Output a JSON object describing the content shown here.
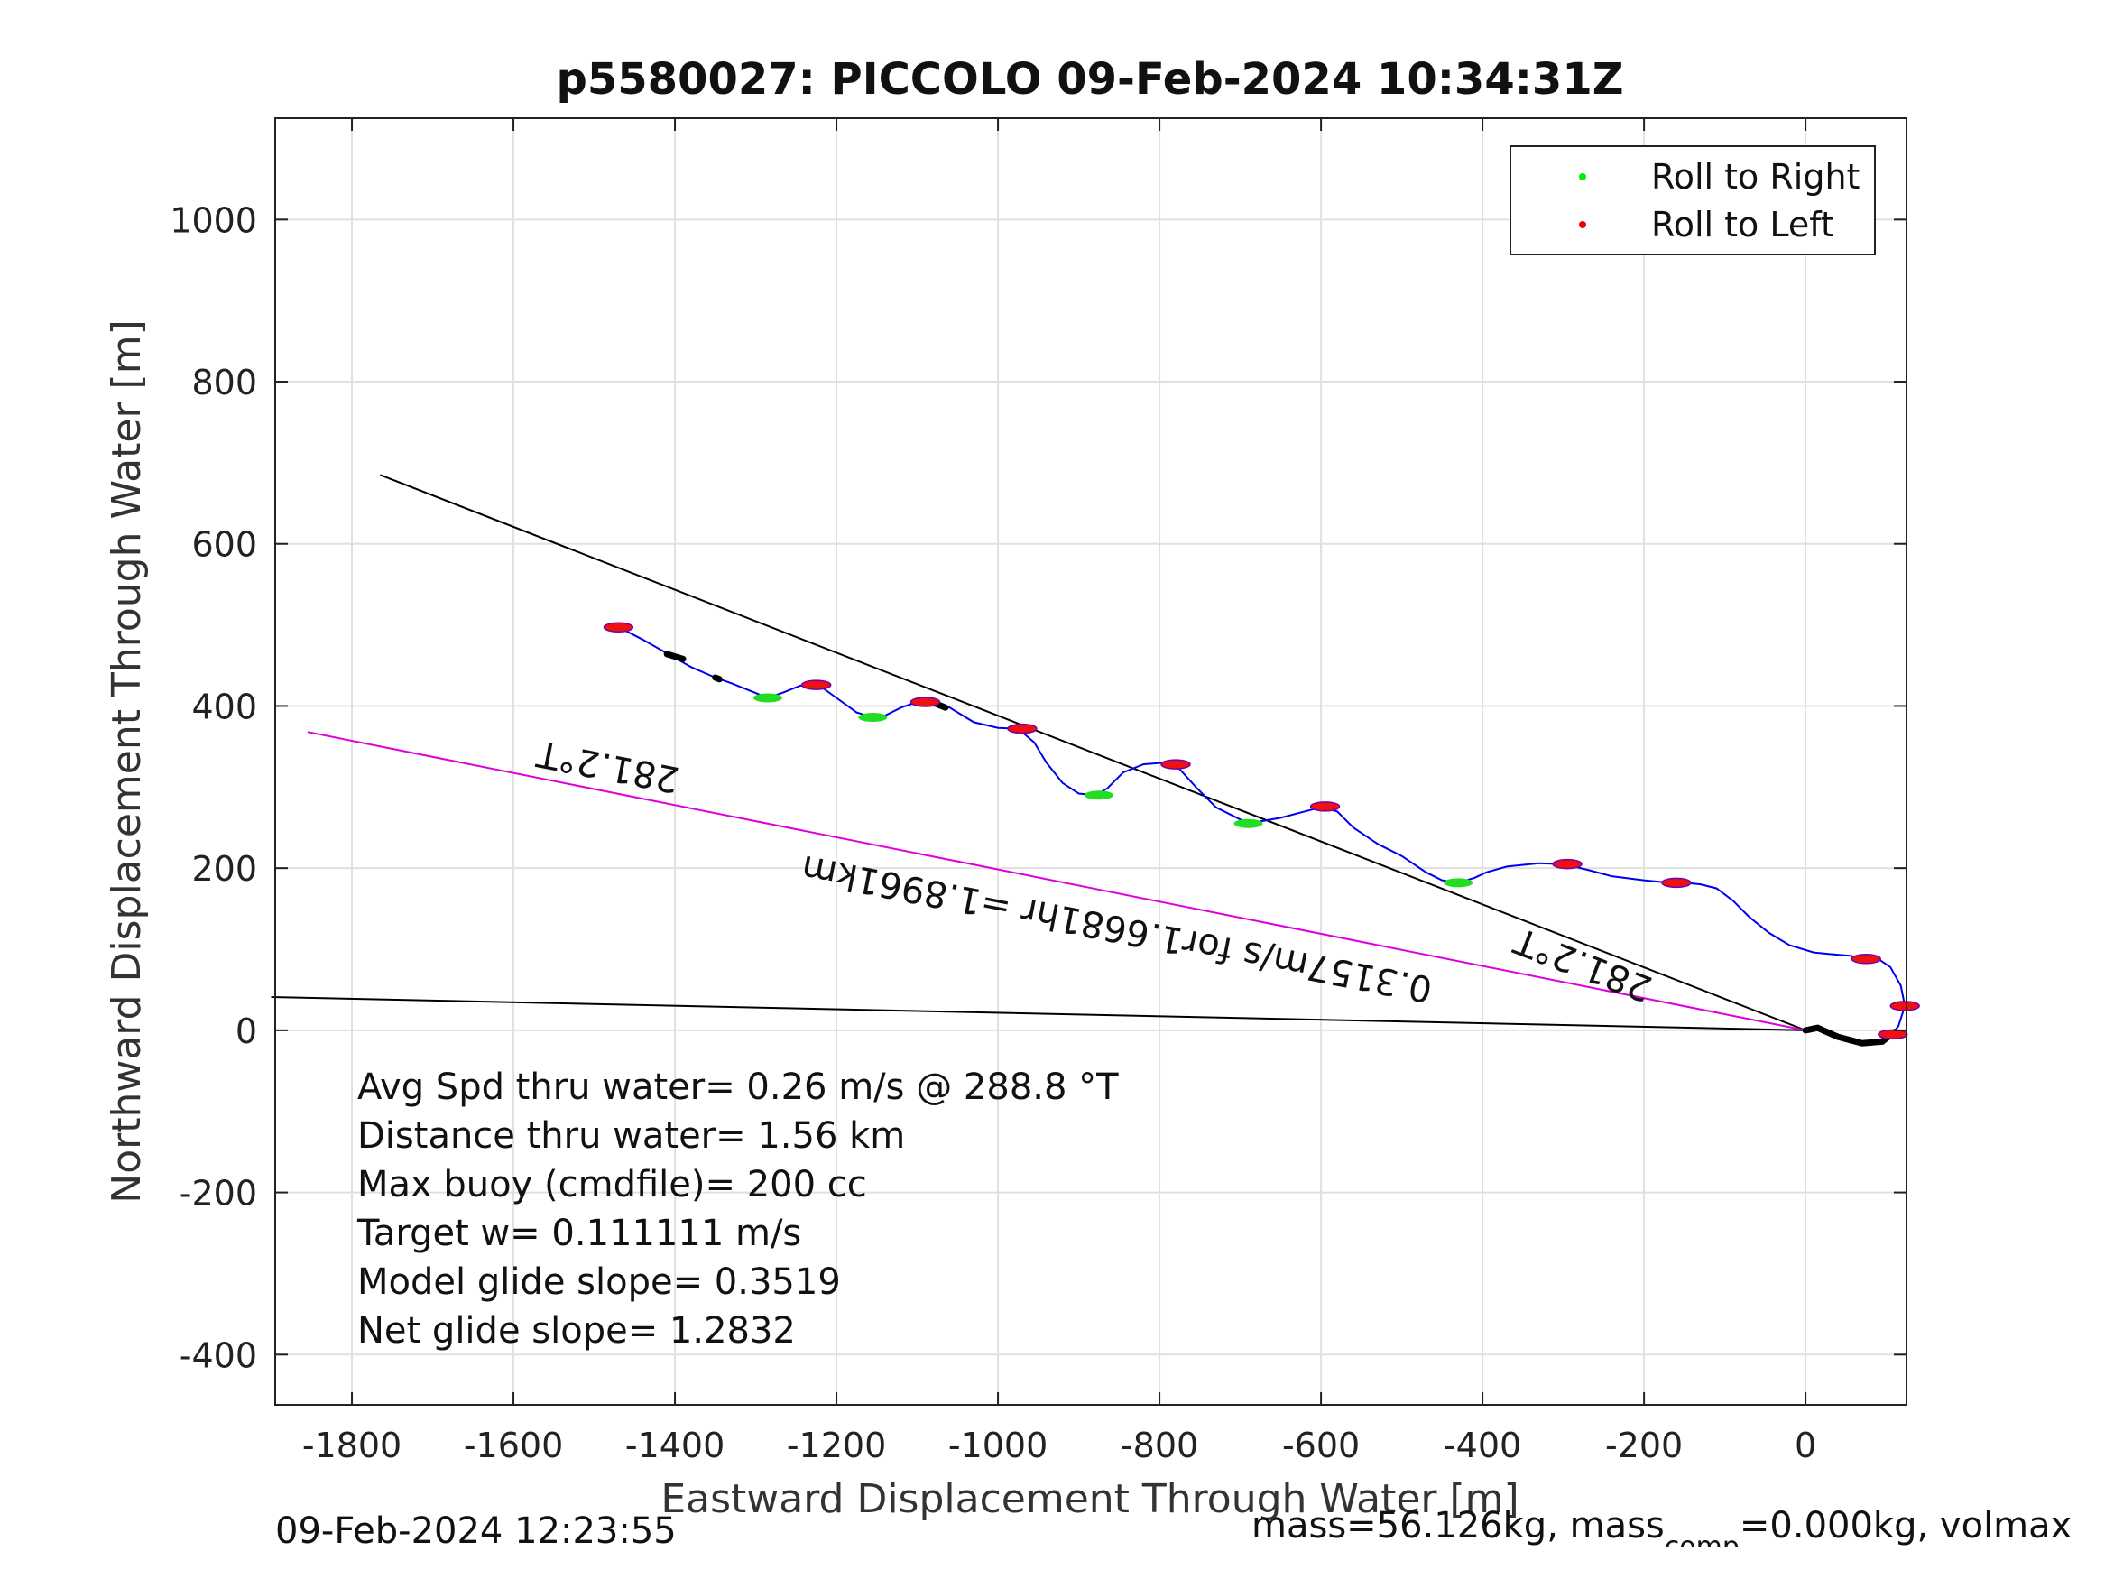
{
  "chart_data": {
    "type": "scatter",
    "title": "p5580027: PICCOLO 09-Feb-2024 10:34:31Z",
    "xlabel": "Eastward Displacement Through Water [m]",
    "ylabel": "Northward Displacement Through Water [m]",
    "xlim": [
      -1895,
      125
    ],
    "ylim": [
      -462,
      1125
    ],
    "xticks": [
      -1800,
      -1600,
      -1400,
      -1200,
      -1000,
      -800,
      -600,
      -400,
      -200,
      0
    ],
    "yticks": [
      -400,
      -200,
      0,
      200,
      400,
      600,
      800,
      1000
    ],
    "grid": true,
    "legend_position": "top-right",
    "legend": [
      {
        "label": "Roll to Right",
        "color": "#00ee00"
      },
      {
        "label": "Roll to Left",
        "color": "#ee0000"
      }
    ],
    "track": [
      [
        0,
        0
      ],
      [
        10,
        5
      ],
      [
        30,
        -5
      ],
      [
        55,
        -15
      ],
      [
        80,
        -18
      ],
      [
        100,
        -12
      ],
      [
        115,
        5
      ],
      [
        123,
        30
      ],
      [
        118,
        55
      ],
      [
        105,
        78
      ],
      [
        90,
        88
      ],
      [
        75,
        88
      ],
      [
        55,
        92
      ],
      [
        30,
        94
      ],
      [
        10,
        96
      ],
      [
        -20,
        105
      ],
      [
        -45,
        120
      ],
      [
        -70,
        140
      ],
      [
        -90,
        160
      ],
      [
        -110,
        175
      ],
      [
        -130,
        180
      ],
      [
        -150,
        182
      ],
      [
        -170,
        182
      ],
      [
        -200,
        185
      ],
      [
        -240,
        190
      ],
      [
        -270,
        198
      ],
      [
        -300,
        205
      ],
      [
        -330,
        206
      ],
      [
        -370,
        202
      ],
      [
        -395,
        195
      ],
      [
        -410,
        188
      ],
      [
        -430,
        182
      ],
      [
        -450,
        185
      ],
      [
        -470,
        195
      ],
      [
        -500,
        215
      ],
      [
        -530,
        230
      ],
      [
        -560,
        250
      ],
      [
        -580,
        270
      ],
      [
        -600,
        275
      ],
      [
        -620,
        270
      ],
      [
        -650,
        262
      ],
      [
        -690,
        255
      ],
      [
        -730,
        275
      ],
      [
        -755,
        300
      ],
      [
        -775,
        322
      ],
      [
        -795,
        330
      ],
      [
        -820,
        328
      ],
      [
        -845,
        318
      ],
      [
        -865,
        298
      ],
      [
        -880,
        290
      ],
      [
        -900,
        292
      ],
      [
        -920,
        305
      ],
      [
        -940,
        330
      ],
      [
        -955,
        355
      ],
      [
        -975,
        372
      ],
      [
        -1000,
        373
      ],
      [
        -1030,
        380
      ],
      [
        -1060,
        398
      ],
      [
        -1080,
        407
      ],
      [
        -1100,
        405
      ],
      [
        -1120,
        398
      ],
      [
        -1140,
        388
      ],
      [
        -1155,
        386
      ],
      [
        -1175,
        392
      ],
      [
        -1200,
        410
      ],
      [
        -1225,
        428
      ],
      [
        -1245,
        425
      ],
      [
        -1265,
        417
      ],
      [
        -1285,
        410
      ],
      [
        -1305,
        418
      ],
      [
        -1330,
        428
      ],
      [
        -1350,
        435
      ],
      [
        -1380,
        448
      ],
      [
        -1410,
        465
      ],
      [
        -1440,
        482
      ],
      [
        -1475,
        500
      ]
    ],
    "roll_right": [
      [
        -1285,
        410
      ],
      [
        -1155,
        386
      ],
      [
        -875,
        290
      ],
      [
        -690,
        255
      ],
      [
        -430,
        182
      ]
    ],
    "roll_left": [
      [
        -1470,
        497
      ],
      [
        -1225,
        426
      ],
      [
        -1090,
        405
      ],
      [
        -970,
        372
      ],
      [
        -780,
        328
      ],
      [
        -595,
        276
      ],
      [
        -295,
        205
      ],
      [
        -160,
        182
      ],
      [
        75,
        88
      ],
      [
        123,
        30
      ],
      [
        108,
        -5
      ]
    ],
    "black_segments": [
      [
        [
          -1410,
          464
        ],
        [
          -1390,
          458
        ]
      ],
      [
        [
          -1350,
          435
        ],
        [
          -1345,
          433
        ]
      ],
      [
        [
          -1085,
          406
        ],
        [
          -1065,
          398
        ]
      ],
      [
        [
          0,
          0
        ],
        [
          15,
          3
        ],
        [
          40,
          -8
        ],
        [
          70,
          -16
        ],
        [
          95,
          -14
        ],
        [
          110,
          -2
        ]
      ]
    ],
    "bearing_lines": [
      {
        "from": [
          0,
          0
        ],
        "to": [
          -1765,
          685
        ],
        "color": "#000000"
      },
      {
        "from": [
          0,
          0
        ],
        "to": [
          -1900,
          41
        ],
        "color": "#000000"
      },
      {
        "from": [
          0,
          0
        ],
        "to": [
          -1855,
          368
        ],
        "color": "#dd00dd"
      }
    ],
    "annotations": [
      {
        "text": "281.2°T",
        "at": [
          -1480,
          340
        ],
        "rotate": 191
      },
      {
        "text": "281.2°T",
        "at": [
          -270,
          95
        ],
        "rotate": 201
      },
      {
        "text": "0.3157m/s for1.6681hr =1.8961km",
        "at": [
          -850,
          140
        ],
        "rotate": 191
      }
    ],
    "stats": [
      "Avg Spd thru water=  0.26 m/s @ 288.8 °T",
      "Distance thru water=  1.56 km",
      "Max buoy (cmdfile)= 200 cc",
      "Target w= 0.111111 m/s",
      "Model glide slope= 0.3519",
      "Net glide slope= 1.2832"
    ]
  },
  "footer": {
    "timestamp": "09-Feb-2024 12:23:55",
    "mass_prefix": "mass=56.126kg, mass",
    "mass_sub": "comp",
    "mass_suffix": "=0.000kg, volmax"
  }
}
